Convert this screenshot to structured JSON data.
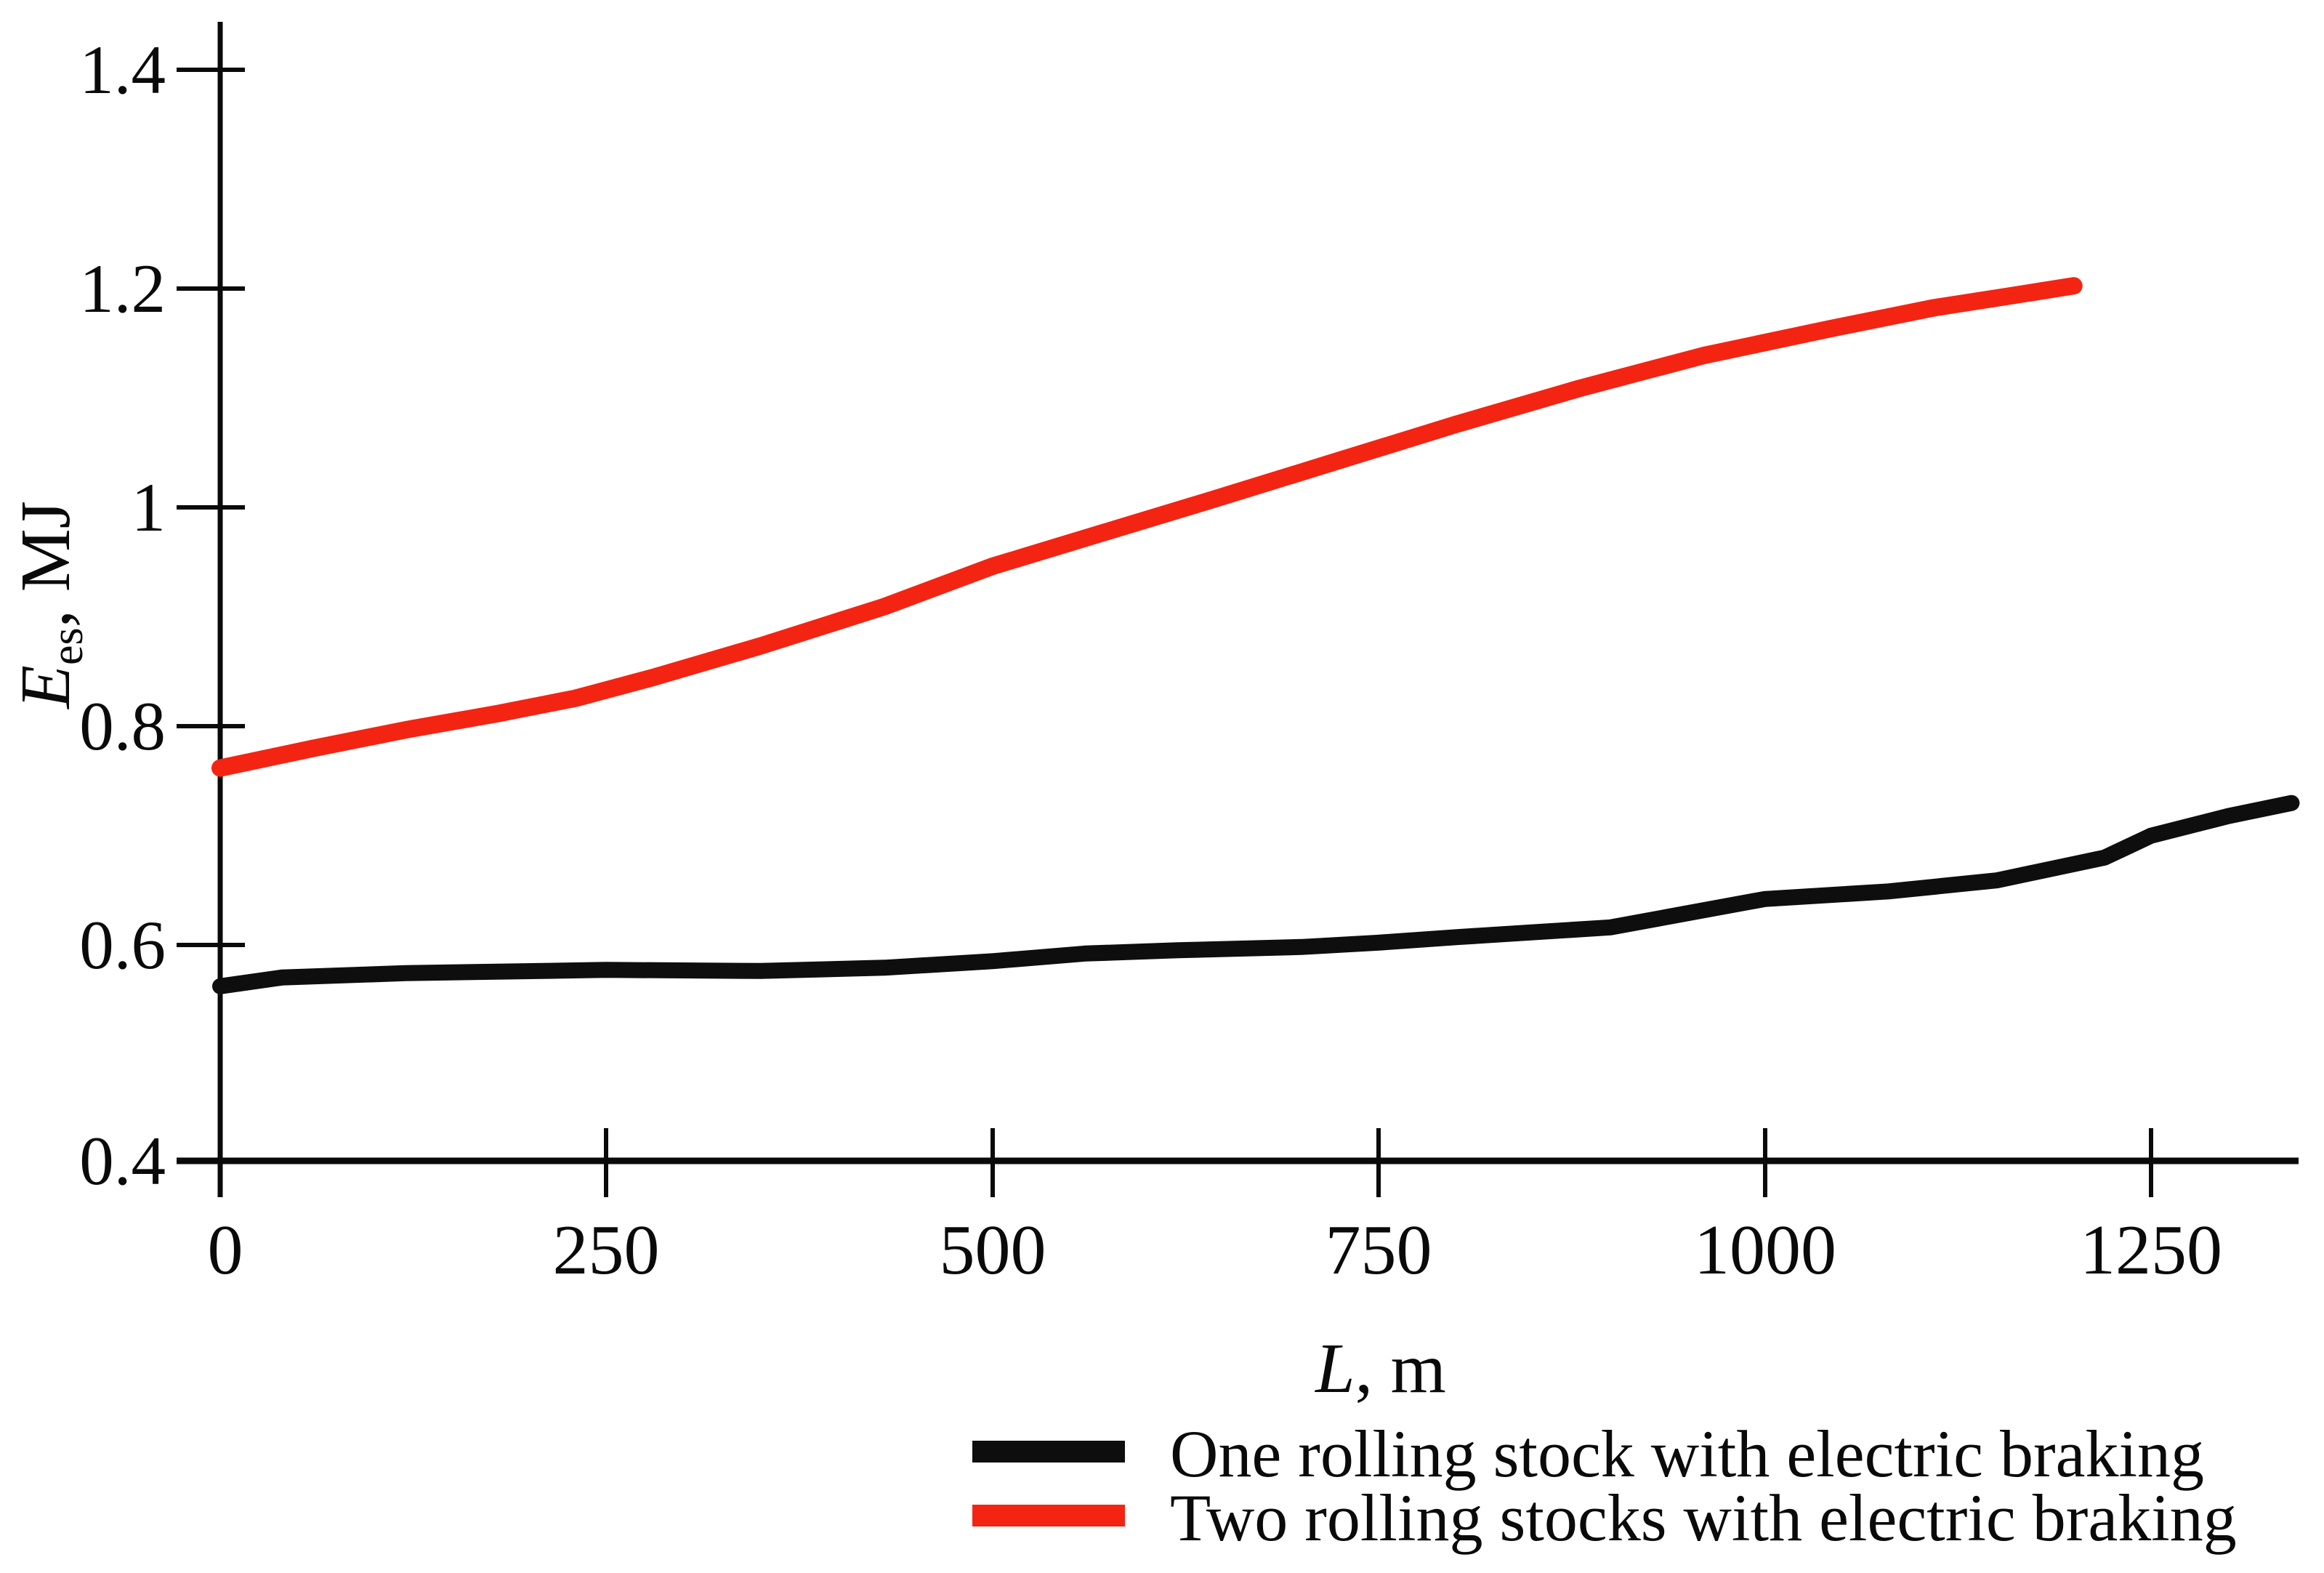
{
  "figure": {
    "background_color": "#ffffff",
    "axis_color": "#0a0a0a"
  },
  "chart_data": {
    "type": "line",
    "title": "",
    "xlabel": "L, m",
    "xlabel_main": "L",
    "xlabel_rest": ", m",
    "ylabel": "Ees, MJ",
    "ylabel_main": "E",
    "ylabel_sub": "es",
    "ylabel_rest": ", MJ",
    "xlim": [
      0,
      1345
    ],
    "ylim": [
      0.4,
      1.4
    ],
    "grid": false,
    "legend_position": "bottom-center",
    "x_ticks": [
      0,
      250,
      500,
      750,
      1000,
      1250
    ],
    "x_tick_labels": [
      "0",
      "250",
      "500",
      "750",
      "1000",
      "1250"
    ],
    "y_ticks": [
      1.4,
      1.2,
      1.0,
      0.8,
      0.6,
      0.4
    ],
    "y_tick_labels": [
      "1.4",
      "1.2",
      "1",
      "0.8",
      "0.6",
      "0.4"
    ],
    "series": [
      {
        "name": "One rolling stock with electric braking",
        "color": "#0e0e0e",
        "points": [
          [
            0,
            0.56
          ],
          [
            40,
            0.568
          ],
          [
            120,
            0.572
          ],
          [
            250,
            0.575
          ],
          [
            350,
            0.574
          ],
          [
            430,
            0.577
          ],
          [
            500,
            0.583
          ],
          [
            560,
            0.59
          ],
          [
            620,
            0.593
          ],
          [
            700,
            0.596
          ],
          [
            750,
            0.6
          ],
          [
            800,
            0.605
          ],
          [
            900,
            0.614
          ],
          [
            1000,
            0.64
          ],
          [
            1080,
            0.647
          ],
          [
            1150,
            0.657
          ],
          [
            1220,
            0.678
          ],
          [
            1250,
            0.698
          ],
          [
            1300,
            0.716
          ],
          [
            1341,
            0.728
          ]
        ]
      },
      {
        "name": "Two rolling stocks with electric braking",
        "color": "#f42413",
        "points": [
          [
            0,
            0.76
          ],
          [
            60,
            0.778
          ],
          [
            120,
            0.795
          ],
          [
            180,
            0.81
          ],
          [
            230,
            0.824
          ],
          [
            280,
            0.843
          ],
          [
            350,
            0.872
          ],
          [
            430,
            0.908
          ],
          [
            500,
            0.945
          ],
          [
            570,
            0.975
          ],
          [
            640,
            1.005
          ],
          [
            720,
            1.04
          ],
          [
            800,
            1.075
          ],
          [
            880,
            1.108
          ],
          [
            960,
            1.138
          ],
          [
            1040,
            1.162
          ],
          [
            1110,
            1.182
          ],
          [
            1160,
            1.193
          ],
          [
            1200,
            1.202
          ]
        ]
      }
    ]
  }
}
